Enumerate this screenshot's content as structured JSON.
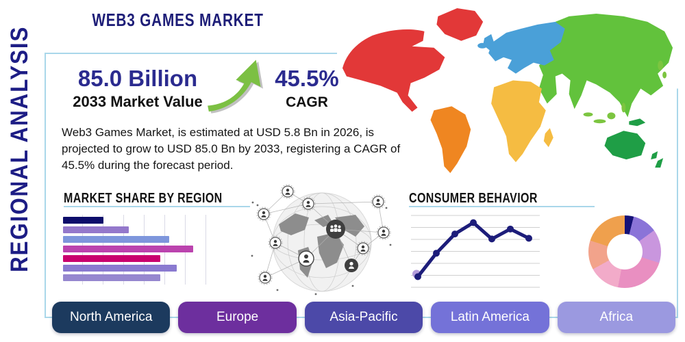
{
  "title": "WEB3 GAMES MARKET",
  "side_label": "REGIONAL ANALYSIS",
  "stats": {
    "market_value": "85.0 Billion",
    "market_value_caption": "2033 Market Value",
    "cagr_value": "45.5%",
    "cagr_caption": "CAGR",
    "description": "Web3 Games Market, is estimated at USD 5.8 Bn in 2026, is projected to grow to USD 85.0 Bn by 2033, registering a CAGR of 45.5% during the forecast period."
  },
  "accents": {
    "title_navy": "#1e1e78",
    "panel_border_blue": "#a9d7ea",
    "arrow_green": "#7cc043",
    "arrow_shadow_gray": "#a0a0a0"
  },
  "regions": [
    {
      "label": "North America",
      "color": "#1c3a5e"
    },
    {
      "label": "Europe",
      "color": "#6d2f9e"
    },
    {
      "label": "Asia-Pacific",
      "color": "#4c49a8"
    },
    {
      "label": "Latin America",
      "color": "#7472d8"
    },
    {
      "label": "Africa",
      "color": "#9b99e0"
    }
  ],
  "chart_data": [
    {
      "type": "bar",
      "title": "MARKET SHARE BY REGION",
      "orientation": "horizontal",
      "note": "bars unlabeled; values estimated as percent of axis width",
      "values": [
        27,
        44,
        71,
        87,
        65,
        76,
        65
      ],
      "colors": [
        "#0d0d6b",
        "#9478cb",
        "#7e96dc",
        "#bb43ae",
        "#c9006e",
        "#8a7ad0",
        "#9687cf"
      ],
      "grid": "vertical",
      "grid_color": "#d9d9e6",
      "xlim": [
        0,
        100
      ]
    },
    {
      "type": "line",
      "title": "CONSUMER BEHAVIOR",
      "note": "axes unlabeled; y values estimated on 0-100 scale",
      "x": [
        1,
        2,
        3,
        4,
        5,
        6,
        7
      ],
      "y": [
        12,
        45,
        72,
        88,
        65,
        79,
        66
      ],
      "ylim": [
        0,
        100
      ],
      "grid": "horizontal",
      "grid_color": "#cfcfcf",
      "line_color": "#1d1d7a",
      "marker_color": "#1d1d7a",
      "start_dot_color": "#b49ddb"
    },
    {
      "type": "pie",
      "variant": "donut",
      "note": "slices unlabeled; percentages estimated from angles",
      "slices": [
        {
          "color": "#151277",
          "value": 4
        },
        {
          "color": "#8a74d8",
          "value": 11
        },
        {
          "color": "#c996de",
          "value": 15
        },
        {
          "color": "#e98fc1",
          "value": 23
        },
        {
          "color": "#f2abc9",
          "value": 14
        },
        {
          "color": "#f2a38b",
          "value": 13
        },
        {
          "color": "#efa04d",
          "value": 20
        }
      ]
    }
  ],
  "map": {
    "regions": [
      {
        "name": "north-america",
        "color": "#e23838"
      },
      {
        "name": "greenland",
        "color": "#e23838"
      },
      {
        "name": "south-america",
        "color": "#ef8621"
      },
      {
        "name": "europe",
        "color": "#4aa0d8"
      },
      {
        "name": "iceland",
        "color": "#4aa0d8"
      },
      {
        "name": "uk",
        "color": "#4aa0d8"
      },
      {
        "name": "africa",
        "color": "#f5bc42"
      },
      {
        "name": "madagascar",
        "color": "#f5bc42"
      },
      {
        "name": "asia",
        "color": "#62c23c"
      },
      {
        "name": "se-asia-islands",
        "color": "#7cc540"
      },
      {
        "name": "japan",
        "color": "#7cc540"
      },
      {
        "name": "australia",
        "color": "#1f9e46"
      },
      {
        "name": "new-zealand",
        "color": "#1f9e46"
      },
      {
        "name": "new-guinea",
        "color": "#1f9e46"
      }
    ]
  }
}
